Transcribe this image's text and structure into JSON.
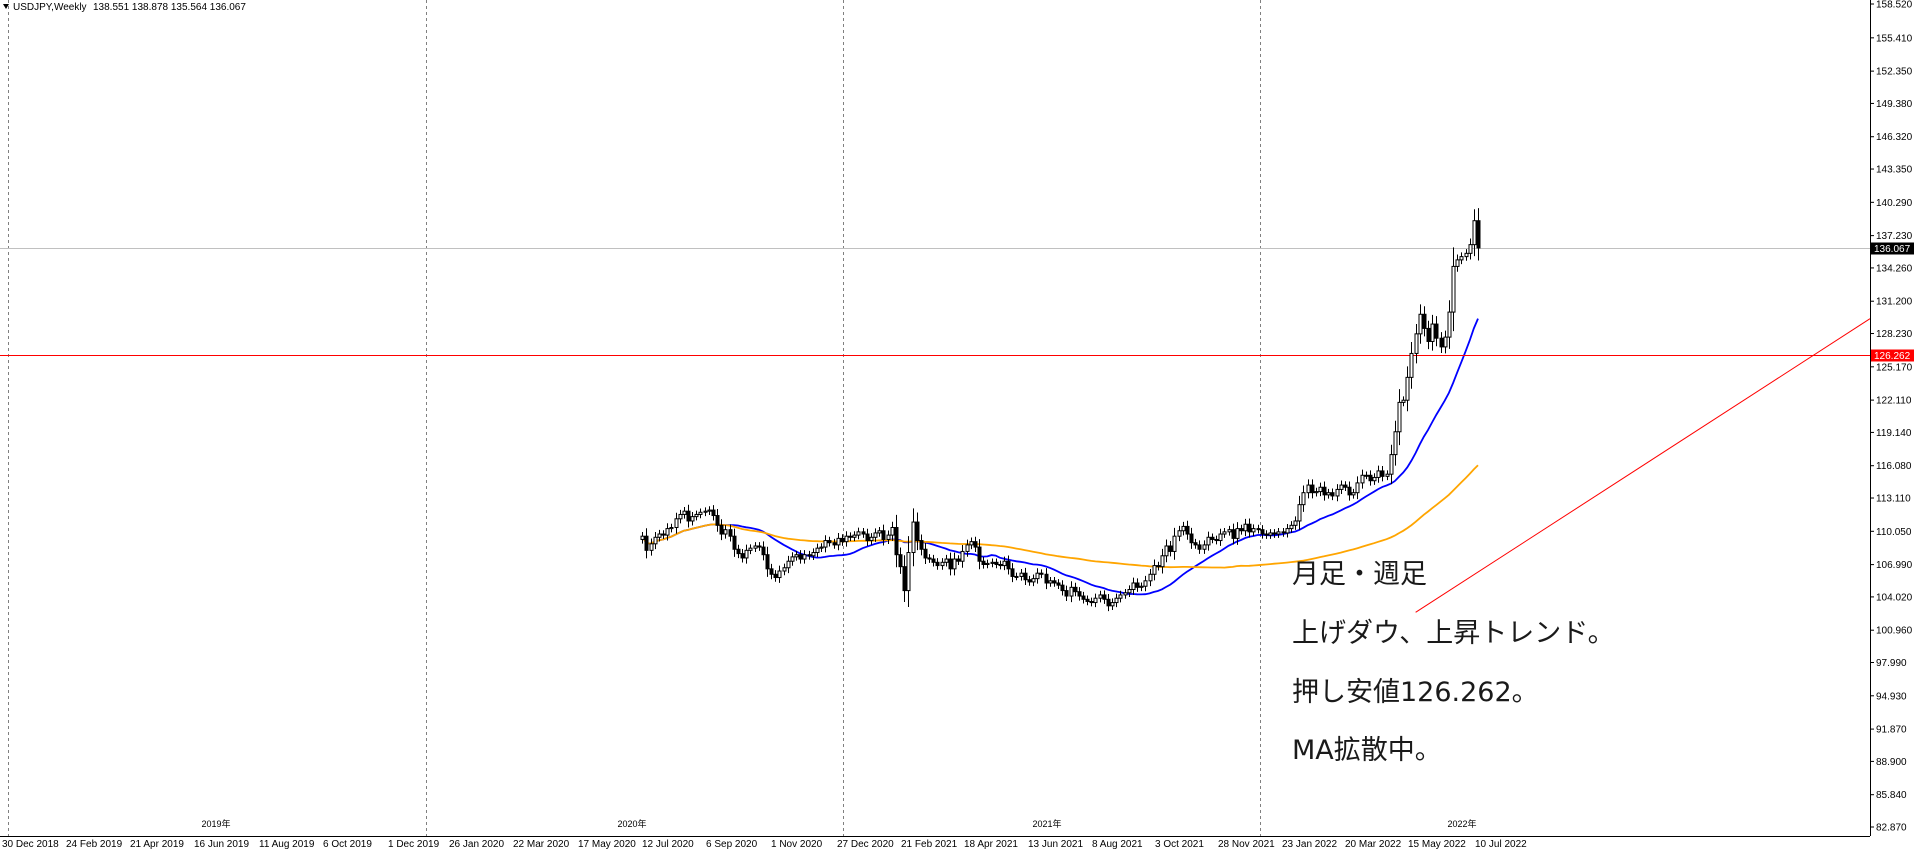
{
  "header": {
    "symbol_label": "USDJPY,Weekly",
    "ohlc_label": "138.551 138.878 135.564 136.067"
  },
  "annotations": {
    "line1": "月足・週足",
    "line2": "上げダウ、上昇トレンド。",
    "line3": "押し安値126.262。",
    "line4": "MA拡散中。"
  },
  "colors": {
    "background": "#ffffff",
    "candle_outline": "#000000",
    "bull_fill": "#ffffff",
    "bear_fill": "#000000",
    "ma_fast": "#0000ff",
    "ma_slow": "#ffa500",
    "hline": "#ff0000",
    "trendline": "#ff0000",
    "current_price_line": "#c0c0c0",
    "grid": "#808080"
  },
  "chart_data": {
    "type": "candlestick",
    "ylim": [
      82.87,
      158.52
    ],
    "y_ticks": [
      "158.520",
      "155.410",
      "152.350",
      "149.380",
      "146.320",
      "143.350",
      "140.290",
      "137.230",
      "134.260",
      "131.200",
      "128.230",
      "125.170",
      "122.110",
      "119.140",
      "116.080",
      "113.110",
      "110.050",
      "106.990",
      "104.020",
      "100.960",
      "97.990",
      "94.930",
      "91.870",
      "88.900",
      "85.840",
      "82.870"
    ],
    "x_labels": [
      "30 Dec 2018",
      "24 Feb 2019",
      "21 Apr 2019",
      "16 Jun 2019",
      "11 Aug 2019",
      "6 Oct 2019",
      "1 Dec 2019",
      "26 Jan 2020",
      "22 Mar 2020",
      "17 May 2020",
      "12 Jul 2020",
      "6 Sep 2020",
      "1 Nov 2020",
      "27 Dec 2020",
      "21 Feb 2021",
      "18 Apr 2021",
      "13 Jun 2021",
      "8 Aug 2021",
      "3 Oct 2021",
      "28 Nov 2021",
      "23 Jan 2022",
      "20 Mar 2022",
      "15 May 2022",
      "10 Jul 2022"
    ],
    "year_labels": [
      "2019年",
      "2020年",
      "2021年",
      "2022年"
    ],
    "current_price": 136.067,
    "current_price_label": "136.067",
    "horizontal_line": 126.262,
    "horizontal_line_label": "126.262",
    "trendline": {
      "from": {
        "week": 0,
        "price": 102.6
      },
      "to": {
        "week": 100,
        "price": 127.3
      }
    },
    "weeks_ago_start": 186,
    "closes": [
      109.6,
      108.3,
      108.9,
      109.5,
      109.8,
      109.7,
      110.3,
      110.4,
      111.2,
      111.6,
      111.9,
      111.0,
      111.4,
      111.6,
      111.8,
      111.9,
      112.0,
      111.5,
      110.6,
      109.8,
      110.2,
      109.6,
      108.4,
      108.0,
      107.6,
      108.3,
      108.5,
      108.7,
      108.6,
      107.9,
      106.6,
      106.1,
      105.8,
      106.4,
      106.7,
      107.3,
      107.7,
      107.9,
      107.5,
      107.9,
      107.8,
      108.1,
      108.5,
      108.6,
      109.2,
      109.0,
      108.8,
      109.4,
      109.1,
      109.6,
      109.5,
      109.7,
      110.0,
      109.8,
      109.2,
      109.5,
      109.9,
      110.1,
      109.3,
      109.7,
      110.4,
      107.9,
      106.8,
      104.6,
      108.1,
      110.9,
      109.2,
      108.4,
      107.6,
      107.5,
      107.2,
      106.9,
      107.2,
      107.5,
      106.6,
      107.5,
      107.3,
      108.2,
      108.8,
      109.1,
      108.6,
      107.3,
      107.0,
      107.1,
      107.2,
      107.0,
      106.9,
      107.3,
      106.6,
      105.9,
      105.9,
      106.2,
      105.6,
      105.4,
      105.7,
      106.2,
      106.1,
      105.3,
      105.5,
      105.3,
      105.1,
      104.6,
      104.1,
      104.9,
      104.5,
      104.1,
      103.8,
      103.6,
      103.5,
      103.9,
      104.2,
      103.8,
      103.2,
      103.5,
      103.9,
      104.2,
      104.4,
      104.7,
      105.3,
      104.9,
      105.0,
      105.5,
      106.1,
      106.9,
      106.8,
      107.8,
      108.7,
      108.2,
      109.6,
      110.1,
      110.5,
      109.8,
      109.0,
      108.8,
      108.4,
      108.8,
      109.5,
      109.3,
      109.2,
      109.8,
      110.0,
      110.2,
      109.4,
      110.3,
      110.1,
      110.7,
      110.0,
      110.3,
      110.2,
      109.8,
      109.7,
      109.9,
      109.8,
      110.0,
      109.9,
      110.3,
      110.6,
      111.0,
      112.5,
      113.6,
      114.3,
      113.6,
      113.7,
      114.1,
      113.4,
      113.6,
      113.3,
      113.9,
      114.3,
      114.1,
      113.4,
      113.6,
      114.5,
      115.2,
      115.2,
      114.7,
      115.0,
      115.6,
      115.1,
      115.3,
      117.1,
      119.2,
      121.9,
      122.1,
      124.2,
      126.4,
      128.2,
      130.0,
      128.7,
      127.5,
      129.1,
      127.8,
      127.0,
      127.9,
      130.2,
      134.4,
      135.0,
      135.3,
      135.6,
      136.4,
      138.6,
      136.1
    ]
  }
}
